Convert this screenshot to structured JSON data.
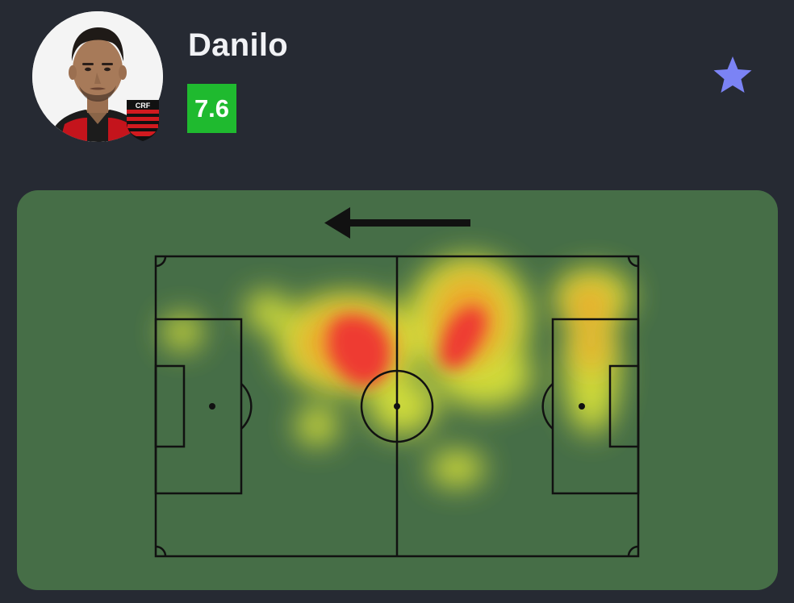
{
  "player": {
    "name": "Danilo",
    "rating": "7.6",
    "rating_color": "#1fba2f",
    "avatar_icon": "player-photo",
    "club_crest_icon": "flamengo-crest-icon"
  },
  "header": {
    "favorite_icon": "star-icon",
    "favorite_color": "#7b83f5"
  },
  "heatmap": {
    "direction_icon": "arrow-left-icon",
    "pitch_color": "#466e47",
    "line_color": "#111111",
    "colors": {
      "low": "#d8e23a",
      "mid": "#f0a52a",
      "high": "#ee3b33"
    }
  }
}
